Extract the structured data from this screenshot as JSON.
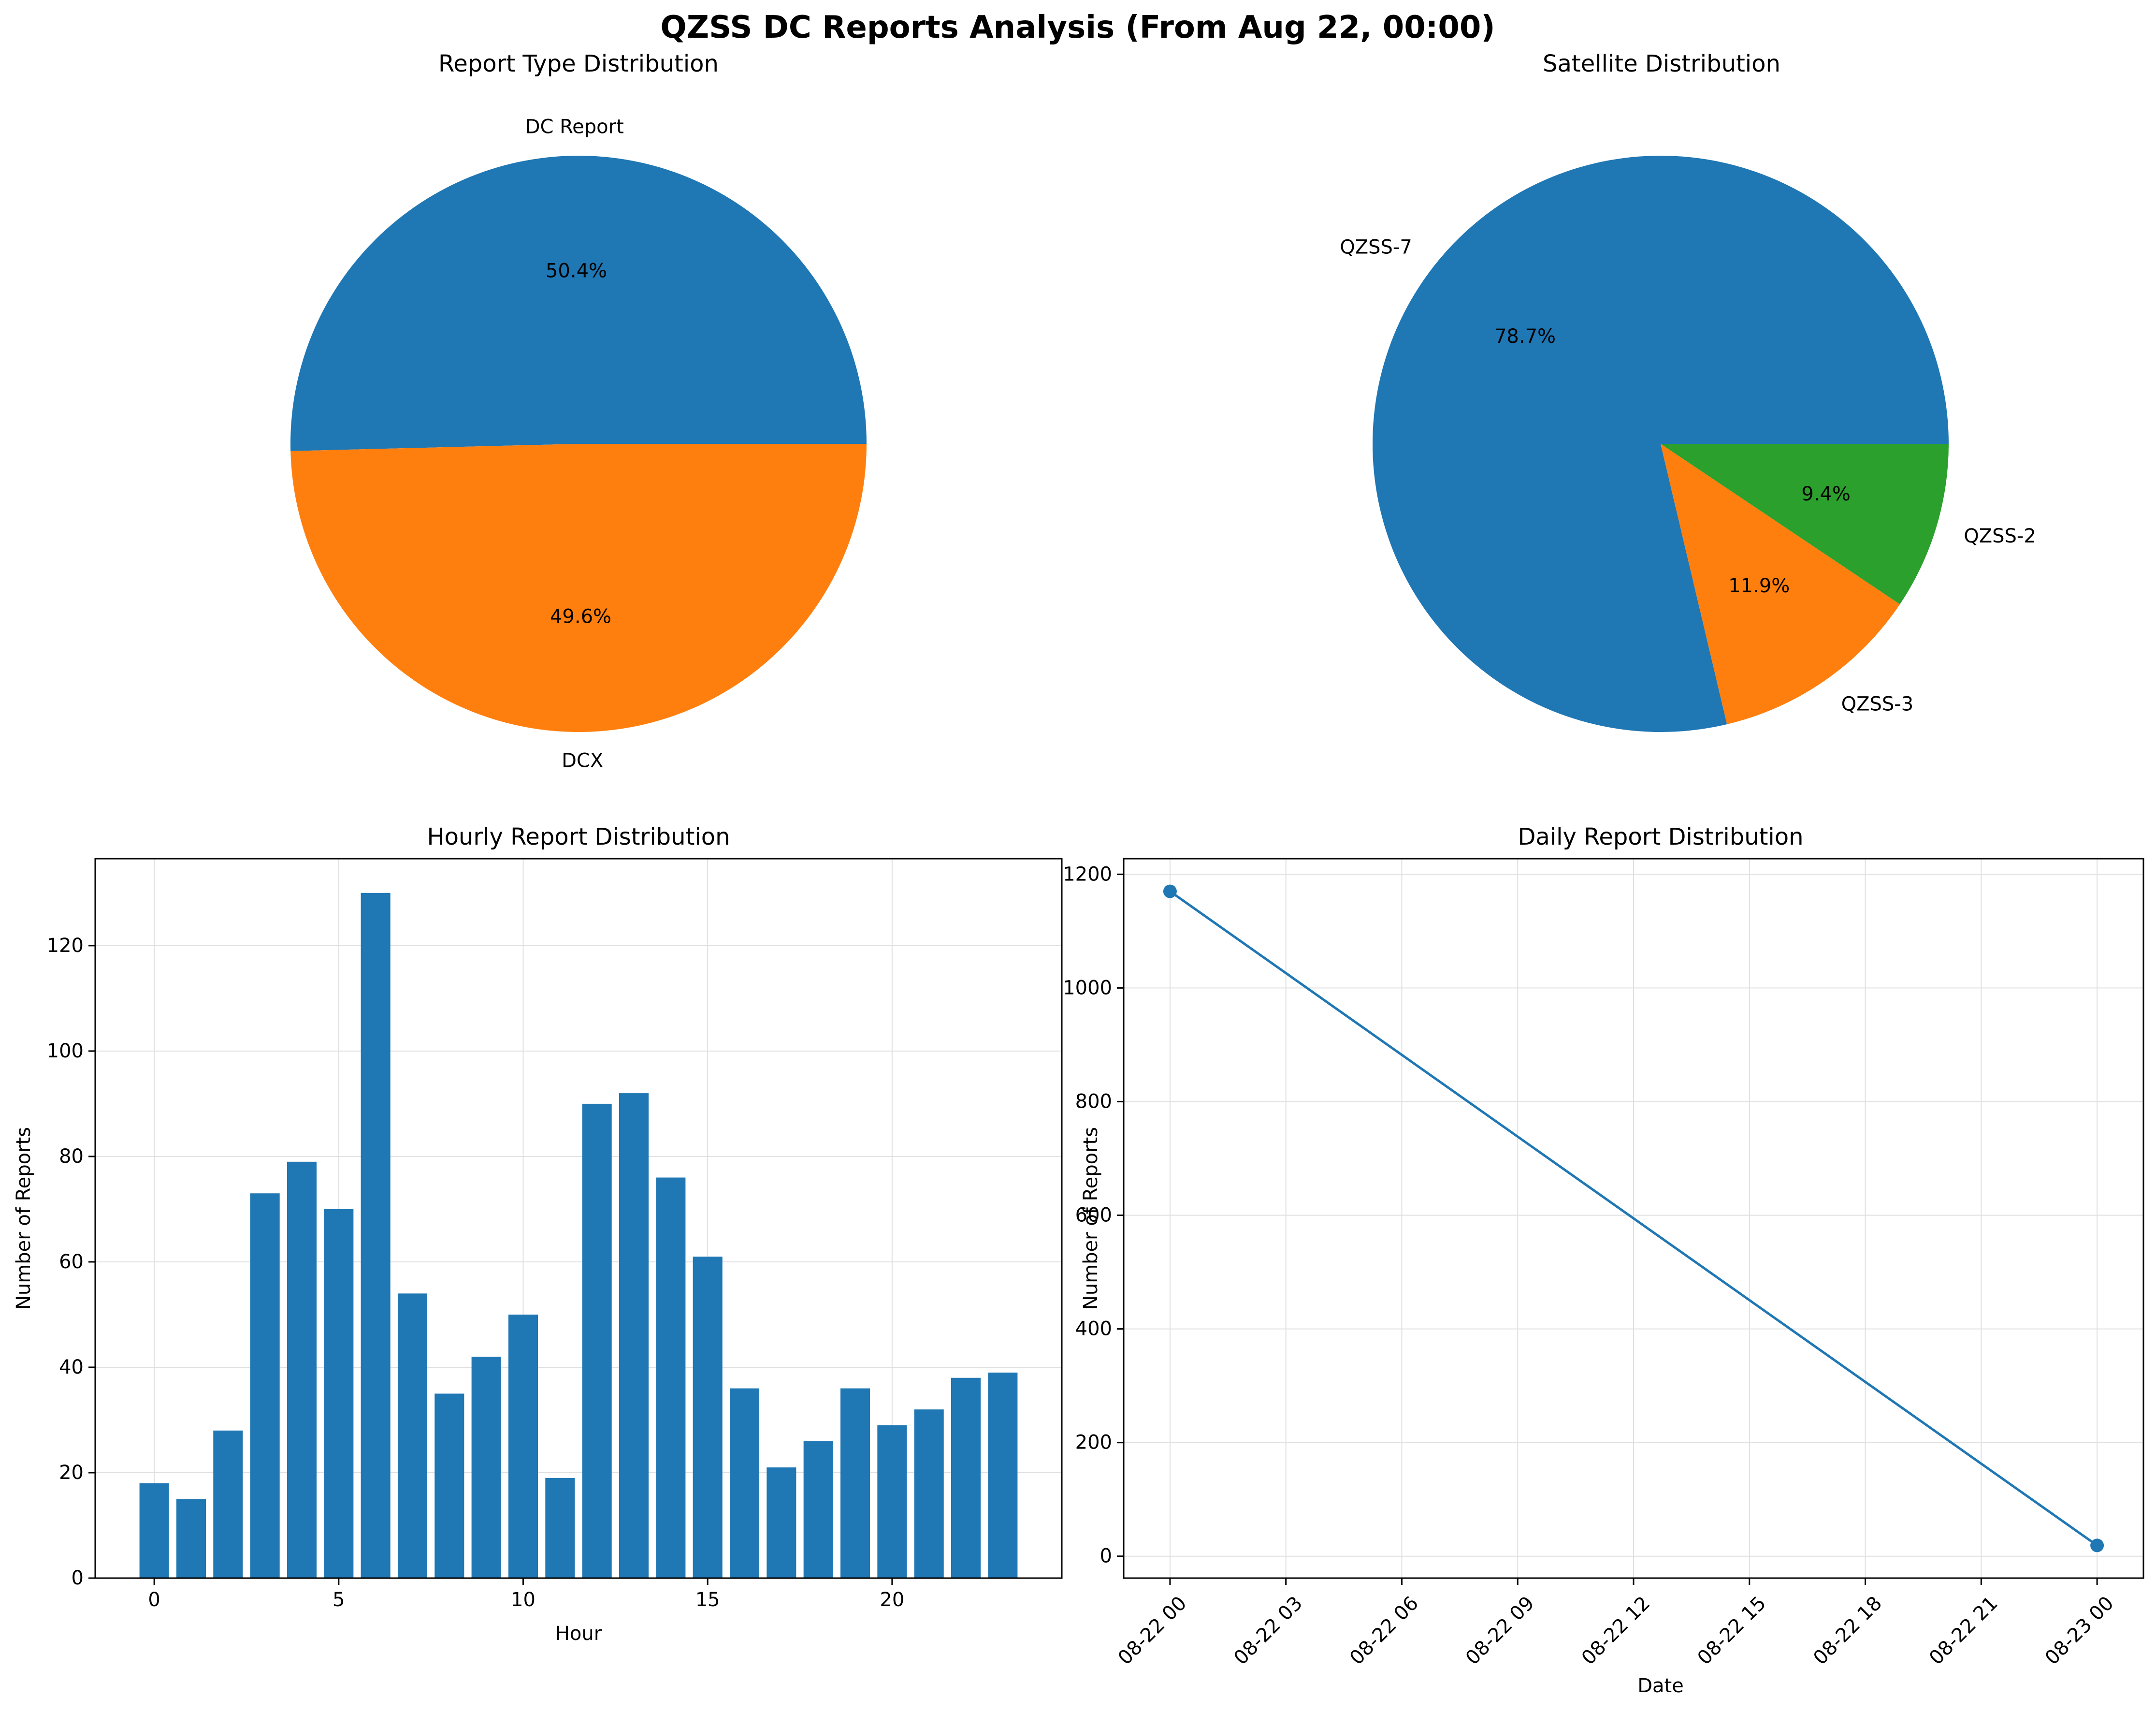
{
  "figure_title": "QZSS DC Reports Analysis (From Aug 22, 00:00)",
  "colors": {
    "blue": "#1f77b4",
    "orange": "#ff7f0e",
    "green": "#2ca02c",
    "grid": "#e0e0e0",
    "axis": "#000000"
  },
  "chart_data": [
    {
      "type": "pie",
      "title": "Report Type Distribution",
      "slices": [
        {
          "label": "DC Report",
          "percent": 50.4,
          "pct_label": "50.4%",
          "color": "#1f77b4"
        },
        {
          "label": "DCX",
          "percent": 49.6,
          "pct_label": "49.6%",
          "color": "#ff7f0e"
        }
      ]
    },
    {
      "type": "pie",
      "title": "Satellite Distribution",
      "slices": [
        {
          "label": "QZSS-7",
          "percent": 78.7,
          "pct_label": "78.7%",
          "color": "#1f77b4"
        },
        {
          "label": "QZSS-3",
          "percent": 11.9,
          "pct_label": "11.9%",
          "color": "#ff7f0e"
        },
        {
          "label": "QZSS-2",
          "percent": 9.4,
          "pct_label": "9.4%",
          "color": "#2ca02c"
        }
      ]
    },
    {
      "type": "bar",
      "title": "Hourly Report Distribution",
      "xlabel": "Hour",
      "ylabel": "Number of Reports",
      "categories": [
        0,
        1,
        2,
        3,
        4,
        5,
        6,
        7,
        8,
        9,
        10,
        11,
        12,
        13,
        14,
        15,
        16,
        17,
        18,
        19,
        20,
        21,
        22,
        23
      ],
      "values": [
        18,
        15,
        28,
        73,
        79,
        70,
        130,
        54,
        35,
        42,
        50,
        19,
        90,
        92,
        76,
        61,
        36,
        21,
        26,
        36,
        29,
        32,
        38,
        39
      ],
      "xlim": [
        -1.6,
        24.6
      ],
      "ylim": [
        0,
        136.5
      ],
      "xticks": [
        0,
        5,
        10,
        15,
        20
      ],
      "yticks": [
        0,
        20,
        40,
        60,
        80,
        100,
        120
      ],
      "grid": true,
      "color": "#1f77b4"
    },
    {
      "type": "line",
      "title": "Daily Report Distribution",
      "xlabel": "Date",
      "ylabel": "Number of Reports",
      "x": [
        "2024-08-22 00:00",
        "2024-08-23 00:00"
      ],
      "y": [
        1170,
        19
      ],
      "x_hours": [
        0,
        24
      ],
      "xlim_hours": [
        -1.2,
        25.2
      ],
      "ylim": [
        -38.5,
        1227.5
      ],
      "xticks_hours": [
        0,
        3,
        6,
        9,
        12,
        15,
        18,
        21,
        24
      ],
      "xtick_labels": [
        "08-22 00",
        "08-22 03",
        "08-22 06",
        "08-22 09",
        "08-22 12",
        "08-22 15",
        "08-22 18",
        "08-22 21",
        "08-23 00"
      ],
      "yticks": [
        0,
        200,
        400,
        600,
        800,
        1000,
        1200
      ],
      "grid": true,
      "marker": "circle",
      "color": "#1f77b4"
    }
  ]
}
